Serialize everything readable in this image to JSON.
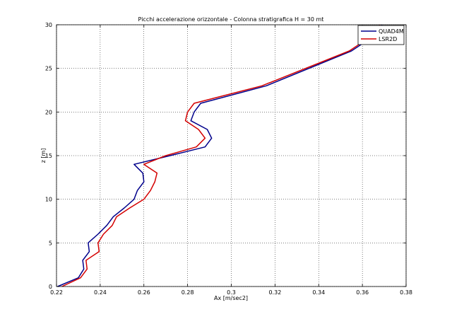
{
  "chart_data": {
    "type": "line",
    "title": "Picchi accelerazione orizzontale - Colonna stratigrafica H = 30 mt",
    "xlabel": "Ax [m/sec2]",
    "ylabel": "z [m]",
    "xlim": [
      0.22,
      0.38
    ],
    "ylim": [
      0,
      30
    ],
    "x_ticks": [
      "0.22",
      "0.24",
      "0.26",
      "0.28",
      "0.3",
      "0.32",
      "0.34",
      "0.36",
      "0.38"
    ],
    "y_ticks": [
      "0",
      "5",
      "10",
      "15",
      "20",
      "25",
      "30"
    ],
    "grid": true,
    "legend_position": "top-right",
    "series": [
      {
        "name": "QUAD4M",
        "color": "#00008b",
        "x": [
          0.2205,
          0.23,
          0.2325,
          0.232,
          0.235,
          0.2345,
          0.239,
          0.243,
          0.246,
          0.251,
          0.2555,
          0.257,
          0.26,
          0.2595,
          0.2555,
          0.272,
          0.288,
          0.291,
          0.289,
          0.2815,
          0.283,
          0.286,
          0.316,
          0.355,
          0.367,
          0.369
        ],
        "y": [
          0,
          1,
          2,
          3,
          4,
          5,
          6,
          7,
          8,
          9,
          10,
          11,
          12,
          13,
          14,
          15,
          16,
          17,
          18,
          19,
          20,
          21,
          23,
          27,
          29,
          30
        ]
      },
      {
        "name": "LSR2D",
        "color": "#d40000",
        "x": [
          0.2225,
          0.231,
          0.234,
          0.2335,
          0.2395,
          0.239,
          0.2415,
          0.2455,
          0.2475,
          0.2535,
          0.26,
          0.263,
          0.265,
          0.266,
          0.26,
          0.27,
          0.284,
          0.288,
          0.285,
          0.279,
          0.28,
          0.283,
          0.314,
          0.354,
          0.366,
          0.368
        ],
        "y": [
          0,
          1,
          2,
          3,
          4,
          5,
          6,
          7,
          8,
          9,
          10,
          11,
          12,
          13,
          14,
          15,
          16,
          17,
          18,
          19,
          20,
          21,
          23,
          27,
          29,
          30
        ]
      }
    ]
  }
}
